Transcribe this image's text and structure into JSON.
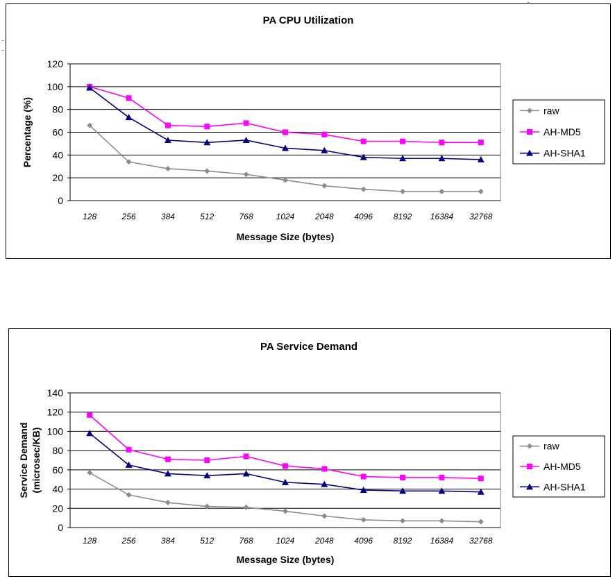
{
  "colors": {
    "raw": "#8c8c8c",
    "AH-MD5": "#ff00ff",
    "AH-SHA1": "#000080",
    "plot_bg": "#ffffff",
    "grid": "#000000"
  },
  "chart_data": [
    {
      "type": "line",
      "title": "PA CPU Utilization",
      "xlabel": "Message Size (bytes)",
      "ylabel": "Percentage (%)",
      "ylim": [
        0,
        120
      ],
      "yticks": [
        "0",
        "20",
        "40",
        "60",
        "80",
        "100",
        "120"
      ],
      "categories": [
        "128",
        "256",
        "384",
        "512",
        "768",
        "1024",
        "2048",
        "4096",
        "8192",
        "16384",
        "32768"
      ],
      "grid": true,
      "legend_position": "right",
      "series": [
        {
          "name": "raw",
          "marker": "diamond",
          "values": [
            66,
            34,
            28,
            26,
            23,
            18,
            13,
            10,
            8,
            8,
            8
          ]
        },
        {
          "name": "AH-MD5",
          "marker": "square",
          "values": [
            100,
            90,
            66,
            65,
            68,
            60,
            58,
            52,
            52,
            51,
            51
          ]
        },
        {
          "name": "AH-SHA1",
          "marker": "triangle",
          "values": [
            99,
            73,
            53,
            51,
            53,
            46,
            44,
            38,
            37,
            37,
            36
          ]
        }
      ]
    },
    {
      "type": "line",
      "title": "PA Service Demand",
      "xlabel": "Message Size (bytes)",
      "ylabel": "Service Demand (microsec/KB)",
      "ylabel_lines": [
        "Service Demand",
        "(microsec/KB)"
      ],
      "ylim": [
        0,
        140
      ],
      "yticks": [
        "0",
        "20",
        "40",
        "60",
        "80",
        "100",
        "120",
        "140"
      ],
      "categories": [
        "128",
        "256",
        "384",
        "512",
        "768",
        "1024",
        "2048",
        "4096",
        "8192",
        "16384",
        "32768"
      ],
      "grid": true,
      "legend_position": "right",
      "series": [
        {
          "name": "raw",
          "marker": "diamond",
          "values": [
            57,
            34,
            26,
            22,
            21,
            17,
            12,
            8,
            7,
            7,
            6
          ]
        },
        {
          "name": "AH-MD5",
          "marker": "square",
          "values": [
            117,
            81,
            71,
            70,
            74,
            64,
            61,
            53,
            52,
            52,
            51
          ]
        },
        {
          "name": "AH-SHA1",
          "marker": "triangle",
          "values": [
            98,
            65,
            56,
            54,
            56,
            47,
            45,
            39,
            38,
            38,
            37
          ]
        }
      ]
    }
  ]
}
